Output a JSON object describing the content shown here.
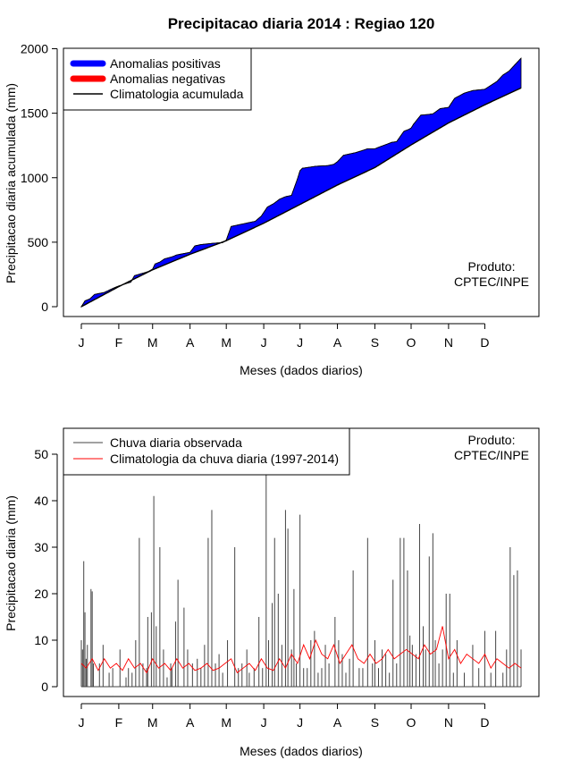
{
  "colors": {
    "positive": "#0000ff",
    "negative": "#ff0000",
    "climatology": "#000000",
    "observed": "#444444",
    "daily_climatology": "#ff0000"
  },
  "chart_data": [
    {
      "type": "area",
      "title": "Precipitacao diaria 2014 : Regiao 120",
      "xlabel": "Meses (dados diarios)",
      "ylabel": "Precipitacao diaria acumulada (mm)",
      "xlim": [
        1,
        365
      ],
      "ylim": [
        0,
        2000
      ],
      "month_ticks": [
        "J",
        "F",
        "M",
        "A",
        "M",
        "J",
        "J",
        "A",
        "S",
        "O",
        "N",
        "D"
      ],
      "month_days": [
        1,
        32,
        60,
        91,
        121,
        152,
        182,
        213,
        244,
        274,
        305,
        335
      ],
      "y_ticks": [
        0,
        500,
        1000,
        1500,
        2000
      ],
      "legend": [
        {
          "label": "Anomalias positivas",
          "color": "#0000ff",
          "style": "thick"
        },
        {
          "label": "Anomalias negativas",
          "color": "#ff0000",
          "style": "thick"
        },
        {
          "label": "Climatologia acumulada",
          "color": "#000000",
          "style": "thin"
        }
      ],
      "note_line1": "Produto:",
      "note_line2": "CPTEC/INPE",
      "climatology": {
        "x": [
          1,
          32,
          60,
          91,
          121,
          152,
          182,
          213,
          244,
          274,
          305,
          335,
          365
        ],
        "y": [
          0,
          155,
          285,
          405,
          510,
          645,
          790,
          940,
          1075,
          1250,
          1420,
          1560,
          1690
        ]
      },
      "observed": {
        "x": [
          1,
          4,
          8,
          12,
          20,
          28,
          32,
          42,
          45,
          56,
          60,
          62,
          66,
          70,
          76,
          80,
          91,
          95,
          100,
          110,
          118,
          121,
          125,
          135,
          145,
          150,
          155,
          160,
          165,
          170,
          175,
          180,
          182,
          184,
          188,
          195,
          205,
          210,
          213,
          218,
          228,
          238,
          244,
          248,
          258,
          262,
          268,
          272,
          274,
          276,
          282,
          288,
          292,
          298,
          305,
          310,
          318,
          325,
          335,
          340,
          345,
          350,
          355,
          360,
          365
        ],
        "y": [
          0,
          45,
          60,
          95,
          110,
          145,
          160,
          190,
          240,
          270,
          290,
          330,
          345,
          370,
          385,
          400,
          420,
          470,
          480,
          490,
          495,
          515,
          620,
          640,
          660,
          700,
          770,
          795,
          830,
          850,
          860,
          990,
          1050,
          1070,
          1075,
          1085,
          1090,
          1100,
          1120,
          1170,
          1190,
          1220,
          1220,
          1235,
          1270,
          1275,
          1355,
          1370,
          1380,
          1410,
          1480,
          1485,
          1490,
          1530,
          1540,
          1610,
          1650,
          1670,
          1680,
          1710,
          1740,
          1790,
          1820,
          1870,
          1920
        ]
      }
    },
    {
      "type": "bar",
      "xlabel": "Meses (dados diarios)",
      "ylabel": "Precipitacao diaria (mm)",
      "xlim": [
        1,
        365
      ],
      "ylim": [
        0,
        55
      ],
      "month_ticks": [
        "J",
        "F",
        "M",
        "A",
        "M",
        "J",
        "J",
        "A",
        "S",
        "O",
        "N",
        "D"
      ],
      "month_days": [
        1,
        32,
        60,
        91,
        121,
        152,
        182,
        213,
        244,
        274,
        305,
        335
      ],
      "y_ticks": [
        0,
        10,
        20,
        30,
        40,
        50
      ],
      "legend": [
        {
          "label": "Chuva diaria observada",
          "color": "#444444"
        },
        {
          "label": "Climatologia da chuva diaria (1997-2014)",
          "color": "#ff0000"
        }
      ],
      "note_line1": "Produto:",
      "note_line2": "CPTEC/INPE",
      "observed_daily": {
        "x": [
          1,
          2,
          3,
          4,
          5,
          6,
          9,
          10,
          11,
          16,
          19,
          24,
          27,
          33,
          38,
          40,
          43,
          46,
          49,
          52,
          55,
          56,
          59,
          61,
          63,
          66,
          69,
          72,
          75,
          76,
          79,
          81,
          86,
          89,
          93,
          97,
          100,
          103,
          106,
          109,
          112,
          115,
          118,
          122,
          128,
          131,
          134,
          138,
          140,
          144,
          148,
          151,
          154,
          156,
          159,
          161,
          164,
          167,
          170,
          172,
          175,
          177,
          179,
          182,
          185,
          188,
          191,
          194,
          197,
          200,
          203,
          206,
          211,
          214,
          217,
          220,
          223,
          226,
          231,
          234,
          238,
          242,
          244,
          247,
          250,
          253,
          256,
          259,
          262,
          265,
          268,
          271,
          273,
          275,
          278,
          281,
          284,
          286,
          289,
          292,
          294,
          297,
          300,
          303,
          306,
          309,
          312,
          318,
          325,
          330,
          335,
          340,
          344,
          350,
          353,
          356,
          359,
          362,
          365
        ],
        "y": [
          10,
          8,
          27,
          16,
          6,
          9,
          21,
          20.5,
          5,
          5,
          9,
          3,
          4,
          8,
          2,
          4,
          3,
          10,
          32,
          5,
          4,
          15,
          16,
          41,
          13,
          30,
          8,
          2,
          5,
          4,
          14,
          23,
          17,
          8,
          5,
          6,
          4,
          9,
          32,
          38,
          5,
          7,
          3,
          10,
          30,
          4,
          5,
          8,
          3,
          4,
          15,
          4,
          46,
          10,
          18,
          32,
          20,
          9,
          38,
          34,
          8,
          21,
          5,
          37,
          4,
          4,
          10,
          12,
          3,
          4,
          9,
          5,
          15,
          10,
          7,
          3,
          6,
          25,
          4,
          4,
          32,
          5,
          10,
          4,
          8,
          7,
          3,
          23,
          5,
          32,
          32,
          25,
          11,
          9,
          7,
          35,
          13,
          8,
          28,
          33,
          10,
          5,
          8,
          20,
          20,
          3,
          10,
          3,
          9,
          4,
          12,
          3,
          12,
          3,
          8,
          30,
          24,
          25,
          8
        ]
      },
      "climatology_daily": {
        "x": [
          1,
          5,
          10,
          15,
          20,
          25,
          30,
          35,
          40,
          45,
          50,
          55,
          60,
          65,
          70,
          75,
          80,
          85,
          90,
          95,
          100,
          105,
          110,
          115,
          120,
          125,
          130,
          135,
          140,
          145,
          150,
          155,
          160,
          165,
          170,
          175,
          180,
          185,
          190,
          195,
          200,
          205,
          210,
          215,
          220,
          225,
          230,
          235,
          240,
          245,
          250,
          255,
          260,
          265,
          270,
          275,
          280,
          285,
          290,
          295,
          300,
          305,
          310,
          315,
          320,
          325,
          330,
          335,
          340,
          345,
          350,
          355,
          360,
          365
        ],
        "y": [
          5,
          4,
          6,
          3.5,
          6,
          4,
          5,
          3.5,
          6,
          4,
          5,
          3,
          6,
          4,
          5,
          3.5,
          6,
          4,
          5,
          3.5,
          4,
          5,
          3.5,
          4,
          5,
          6,
          3,
          4,
          5,
          3.5,
          6,
          4,
          3.5,
          6,
          4,
          7,
          5,
          9,
          6,
          10,
          7,
          6,
          9,
          5,
          7,
          9,
          6,
          5,
          7,
          5,
          6,
          8,
          6,
          7,
          8,
          7,
          6,
          9,
          7,
          8,
          13,
          6,
          8,
          5,
          7,
          6,
          5,
          7,
          4,
          6,
          5,
          4,
          5,
          4
        ]
      }
    }
  ]
}
